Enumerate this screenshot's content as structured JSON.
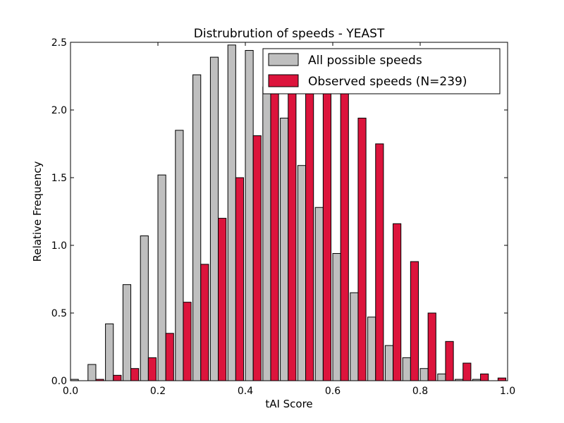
{
  "chart_data": {
    "type": "bar",
    "title": "Distrubrution of speeds - YEAST",
    "xlabel": "tAI Score",
    "ylabel": "Relative Frequency",
    "xlim": [
      0.0,
      1.0
    ],
    "ylim": [
      0.0,
      2.5
    ],
    "xticks": [
      "0.0",
      "0.2",
      "0.4",
      "0.6",
      "0.8",
      "1.0"
    ],
    "yticks": [
      "0.0",
      "0.5",
      "1.0",
      "1.5",
      "2.0",
      "2.5"
    ],
    "bin_width": 0.04,
    "bin_starts": [
      0.0,
      0.04,
      0.08,
      0.12,
      0.16,
      0.2,
      0.24,
      0.28,
      0.32,
      0.36,
      0.4,
      0.44,
      0.48,
      0.52,
      0.56,
      0.6,
      0.64,
      0.68,
      0.72,
      0.76,
      0.8,
      0.84,
      0.88,
      0.92,
      0.96
    ],
    "legend_position": "top-right",
    "grid": false,
    "series": [
      {
        "name": "All possible speeds",
        "color": "#bfbfbf",
        "values": [
          0.01,
          0.12,
          0.42,
          0.71,
          1.07,
          1.52,
          1.85,
          2.26,
          2.39,
          2.48,
          2.44,
          2.17,
          1.94,
          1.59,
          1.28,
          0.94,
          0.65,
          0.47,
          0.26,
          0.17,
          0.09,
          0.05,
          0.01,
          0.01,
          0.0
        ]
      },
      {
        "name": "Observed speeds (N=239)",
        "color": "#dc143c",
        "values": [
          0.0,
          0.01,
          0.04,
          0.09,
          0.17,
          0.35,
          0.58,
          0.86,
          1.2,
          1.5,
          1.81,
          2.25,
          2.28,
          2.32,
          2.32,
          2.25,
          1.94,
          1.75,
          1.16,
          0.88,
          0.5,
          0.29,
          0.13,
          0.05,
          0.02
        ]
      }
    ]
  }
}
